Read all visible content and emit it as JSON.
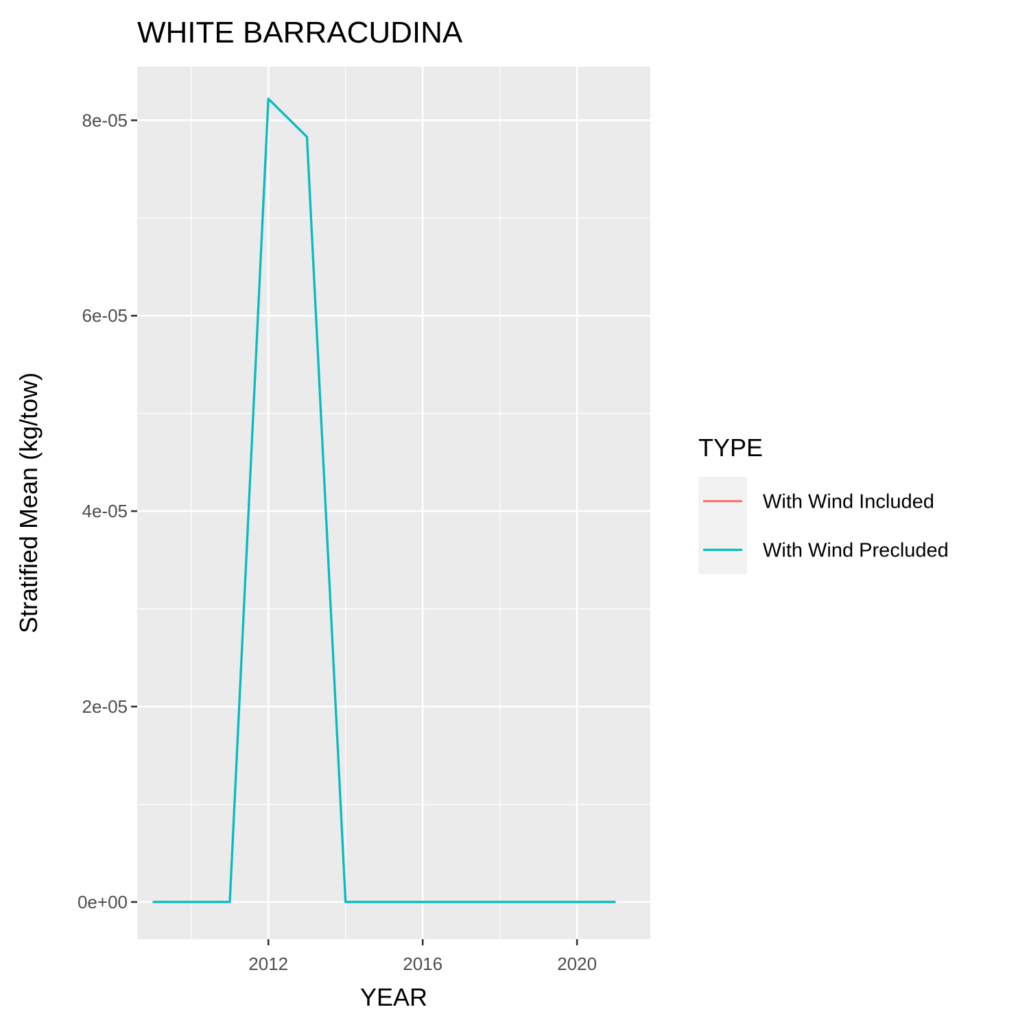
{
  "chart_data": {
    "type": "line",
    "title": "WHITE BARRACUDINA",
    "xlabel": "YEAR",
    "ylabel": "Stratified Mean (kg/tow)",
    "xlim": [
      2008.6,
      2021.9
    ],
    "ylim": [
      -3.8e-06,
      8.55e-05
    ],
    "x_ticks": [
      2012,
      2016,
      2020
    ],
    "x_tick_labels": [
      "2012",
      "2016",
      "2020"
    ],
    "x_minor_ticks": [
      2010,
      2014,
      2018
    ],
    "y_ticks": [
      0,
      2e-05,
      4e-05,
      6e-05,
      8e-05
    ],
    "y_tick_labels": [
      "0e+00",
      "2e-05",
      "4e-05",
      "6e-05",
      "8e-05"
    ],
    "y_minor_ticks": [
      1e-05,
      3e-05,
      5e-05,
      7e-05
    ],
    "grid": true,
    "legend_position": "right",
    "legend": {
      "title": "TYPE",
      "entries": [
        {
          "label": "With Wind Included",
          "color": "#F8766D"
        },
        {
          "label": "With Wind Precluded",
          "color": "#00BFC4"
        }
      ]
    },
    "series": [
      {
        "name": "With Wind Included",
        "color": "#F8766D",
        "x": [
          2009,
          2010,
          2011,
          2012,
          2013,
          2014,
          2015,
          2016,
          2017,
          2018,
          2019,
          2020,
          2021
        ],
        "y": [
          0,
          0,
          0,
          8.22e-05,
          7.83e-05,
          0,
          0,
          0,
          0,
          0,
          0,
          0,
          0
        ]
      },
      {
        "name": "With Wind Precluded",
        "color": "#00BFC4",
        "x": [
          2009,
          2010,
          2011,
          2012,
          2013,
          2014,
          2015,
          2016,
          2017,
          2018,
          2019,
          2020,
          2021
        ],
        "y": [
          0,
          0,
          0,
          8.22e-05,
          7.83e-05,
          0,
          0,
          0,
          0,
          0,
          0,
          0,
          0
        ]
      }
    ]
  }
}
